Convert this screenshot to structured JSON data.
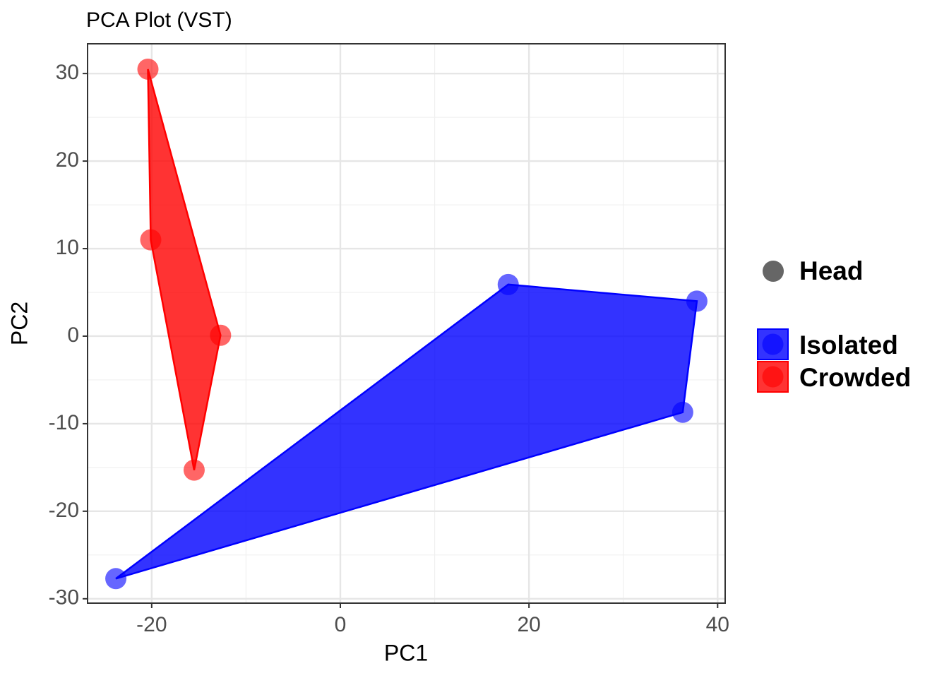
{
  "chart_data": {
    "type": "scatter",
    "title": "PCA Plot (VST)",
    "x_label": "PC1",
    "y_label": "PC2",
    "xlim": [
      -26.8,
      40.8
    ],
    "ylim": [
      -30.5,
      33.4
    ],
    "xticks": [
      -20,
      0,
      20,
      40
    ],
    "yticks": [
      -30,
      -20,
      -10,
      0,
      10,
      20,
      30
    ],
    "x_minor_ticks": [
      -10,
      10,
      30
    ],
    "y_minor_ticks": [
      -25,
      -15,
      -5,
      5,
      15,
      25
    ],
    "grid": true,
    "shape_legend": "Head",
    "series": [
      {
        "name": "Isolated",
        "color": "#0000ff",
        "x": [
          -23.8,
          17.8,
          37.8,
          36.3
        ],
        "y": [
          -27.7,
          5.9,
          4.0,
          -8.7
        ]
      },
      {
        "name": "Crowded",
        "color": "#ff0000",
        "x": [
          -20.4,
          -12.7,
          -15.5,
          -20.1
        ],
        "y": [
          30.5,
          0.1,
          -15.3,
          11.0
        ]
      }
    ]
  }
}
